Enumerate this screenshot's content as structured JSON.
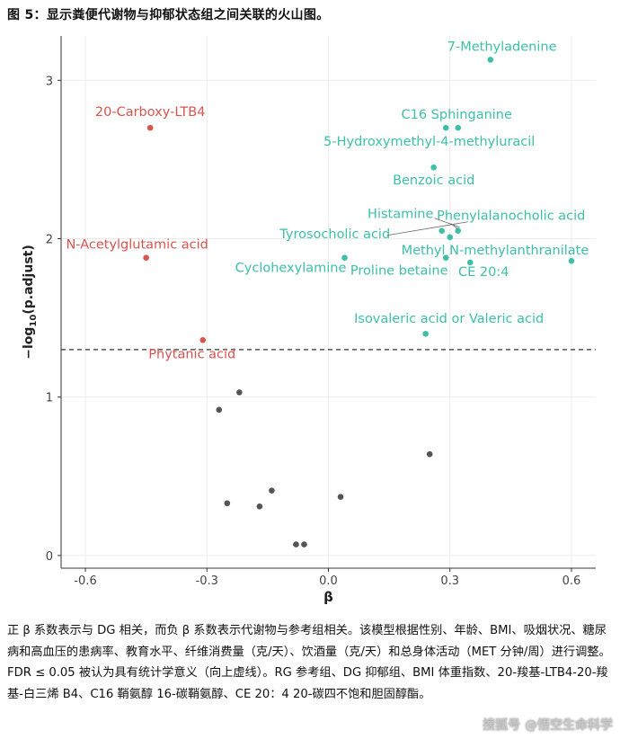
{
  "figure": {
    "title": "图 5：显示粪便代谢物与抑郁状态组之间关联的火山图。",
    "caption": "正 β 系数表示与 DG 相关，而负 β 系数表示代谢物与参考组相关。该模型根据性别、年龄、BMI、吸烟状况、糖尿病和高血压的患病率、教育水平、纤维消费量（克/天）、饮酒量（克/天）和总身体活动（MET 分钟/周）进行调整。FDR ≤ 0.05 被认为具有统计学意义（向上虚线）。RG 参考组、DG 抑郁组、BMI 体重指数、20-羧基-LTB4-20-羧基-白三烯 B4、C16 鞘氨醇 16-碳鞘氨醇、CE 20：4 20-碳四不饱和胆固醇酯。",
    "watermark": "搜狐号 @悟空生命科学"
  },
  "colors": {
    "positive": "#3dbfa8",
    "negative": "#d9534f",
    "nonsig": "#555555",
    "threshold": "#333333"
  },
  "chart_data": {
    "type": "scatter",
    "title": "",
    "xlabel": "β",
    "ylabel_main": "−log",
    "ylabel_sub": "10",
    "ylabel_tail": "(p.adjust)",
    "xlim": [
      -0.66,
      0.66
    ],
    "ylim": [
      -0.08,
      3.28
    ],
    "xticks": [
      -0.6,
      -0.3,
      0.0,
      0.3,
      0.6
    ],
    "xtick_labels": [
      "-0.6",
      "-0.3",
      "0.0",
      "0.3",
      "0.6"
    ],
    "yticks": [
      0,
      1,
      2,
      3
    ],
    "ytick_labels": [
      "0",
      "1",
      "2",
      "3"
    ],
    "threshold": 1.3,
    "points": [
      {
        "x": 0.4,
        "y": 3.13,
        "group": "positive",
        "label": "7-Methyladenine"
      },
      {
        "x": -0.44,
        "y": 2.7,
        "group": "negative",
        "label": "20-Carboxy-LTB4"
      },
      {
        "x": 0.29,
        "y": 2.7,
        "group": "positive",
        "label": "C16 Sphinganine"
      },
      {
        "x": 0.32,
        "y": 2.7,
        "group": "positive",
        "label": "5-Hydroxymethyl-4-methyluracil"
      },
      {
        "x": 0.26,
        "y": 2.45,
        "group": "positive",
        "label": "Benzoic acid"
      },
      {
        "x": 0.28,
        "y": 2.05,
        "group": "positive",
        "label": "Histamine"
      },
      {
        "x": 0.32,
        "y": 2.05,
        "group": "positive",
        "label": "Phenylalanocholic acid"
      },
      {
        "x": 0.3,
        "y": 2.01,
        "group": "positive",
        "label": "Tyrosocholic acid"
      },
      {
        "x": -0.45,
        "y": 1.88,
        "group": "negative",
        "label": "N-Acetylglutamic acid"
      },
      {
        "x": 0.04,
        "y": 1.88,
        "group": "positive",
        "label": "Cyclohexylamine"
      },
      {
        "x": 0.29,
        "y": 1.88,
        "group": "positive",
        "label": "Proline betaine"
      },
      {
        "x": 0.35,
        "y": 1.85,
        "group": "positive",
        "label": "CE 20:4"
      },
      {
        "x": 0.6,
        "y": 1.86,
        "group": "positive",
        "label": "Methyl N-methylanthranilate"
      },
      {
        "x": 0.24,
        "y": 1.4,
        "group": "positive",
        "label": "Isovaleric acid or Valeric acid"
      },
      {
        "x": -0.31,
        "y": 1.36,
        "group": "negative",
        "label": "Phytanic acid"
      },
      {
        "x": -0.22,
        "y": 1.03,
        "group": "nonsig",
        "label": ""
      },
      {
        "x": -0.27,
        "y": 0.92,
        "group": "nonsig",
        "label": ""
      },
      {
        "x": 0.25,
        "y": 0.64,
        "group": "nonsig",
        "label": ""
      },
      {
        "x": -0.14,
        "y": 0.41,
        "group": "nonsig",
        "label": ""
      },
      {
        "x": 0.03,
        "y": 0.37,
        "group": "nonsig",
        "label": ""
      },
      {
        "x": -0.25,
        "y": 0.33,
        "group": "nonsig",
        "label": ""
      },
      {
        "x": -0.17,
        "y": 0.31,
        "group": "nonsig",
        "label": ""
      },
      {
        "x": -0.08,
        "y": 0.07,
        "group": "nonsig",
        "label": ""
      },
      {
        "x": -0.06,
        "y": 0.07,
        "group": "nonsig",
        "label": ""
      }
    ]
  }
}
